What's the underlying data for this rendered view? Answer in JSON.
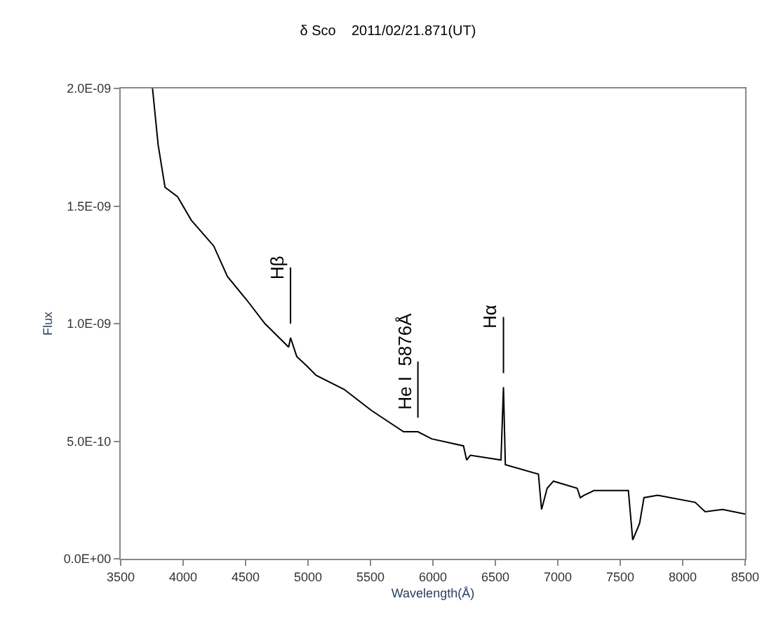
{
  "chart_data": {
    "type": "line",
    "title": "δ Sco    2011/02/21.871(UT)",
    "xlabel": "Wavelength(Å)",
    "ylabel": "Flux",
    "x": [
      3755,
      3800,
      3855,
      3955,
      4065,
      4180,
      4245,
      4355,
      4510,
      4655,
      4845,
      4860,
      4910,
      4990,
      5065,
      5290,
      5510,
      5765,
      5880,
      5990,
      6245,
      6270,
      6300,
      6545,
      6565,
      6580,
      6845,
      6870,
      6915,
      6965,
      7155,
      7180,
      7210,
      7290,
      7565,
      7600,
      7655,
      7690,
      7800,
      8100,
      8180,
      8320,
      8500
    ],
    "series": [
      {
        "color": "#000000",
        "values": [
          2e-09,
          1.76e-09,
          1.58e-09,
          1.54e-09,
          1.44e-09,
          1.37e-09,
          1.33e-09,
          1.2e-09,
          1.1e-09,
          1e-09,
          9e-10,
          9.4e-10,
          8.6e-10,
          8.2e-10,
          7.8e-10,
          7.2e-10,
          6.3e-10,
          5.4e-10,
          5.4e-10,
          5.1e-10,
          4.8e-10,
          4.2e-10,
          4.4e-10,
          4.2e-10,
          7.3e-10,
          4e-10,
          3.6e-10,
          2.1e-10,
          3e-10,
          3.3e-10,
          3e-10,
          2.6e-10,
          2.7e-10,
          2.9e-10,
          2.9e-10,
          8e-11,
          1.5e-10,
          2.6e-10,
          2.7e-10,
          2.4e-10,
          2e-10,
          2.1e-10,
          1.9e-10
        ]
      }
    ],
    "xlim": [
      3500,
      8500
    ],
    "xticks": [
      3500,
      4000,
      4500,
      5000,
      5500,
      6000,
      6500,
      7000,
      7500,
      8000,
      8500
    ],
    "ylim": [
      0,
      2e-09
    ],
    "yticks": [
      {
        "value": 0,
        "label": "0.0E+00"
      },
      {
        "value": 5e-10,
        "label": "5.0E-10"
      },
      {
        "value": 1e-09,
        "label": "1.0E-09"
      },
      {
        "value": 1.5e-09,
        "label": "1.5E-09"
      },
      {
        "value": 2e-09,
        "label": "2.0E-09"
      }
    ],
    "annotations": [
      {
        "text": "Hβ",
        "x": 4860,
        "y": 9.4e-10
      },
      {
        "text": "He I  5876Å",
        "x": 5880,
        "y": 5.4e-10
      },
      {
        "text": "Hα",
        "x": 6565,
        "y": 7.3e-10
      }
    ],
    "marker": "none",
    "line_style": "solid"
  }
}
